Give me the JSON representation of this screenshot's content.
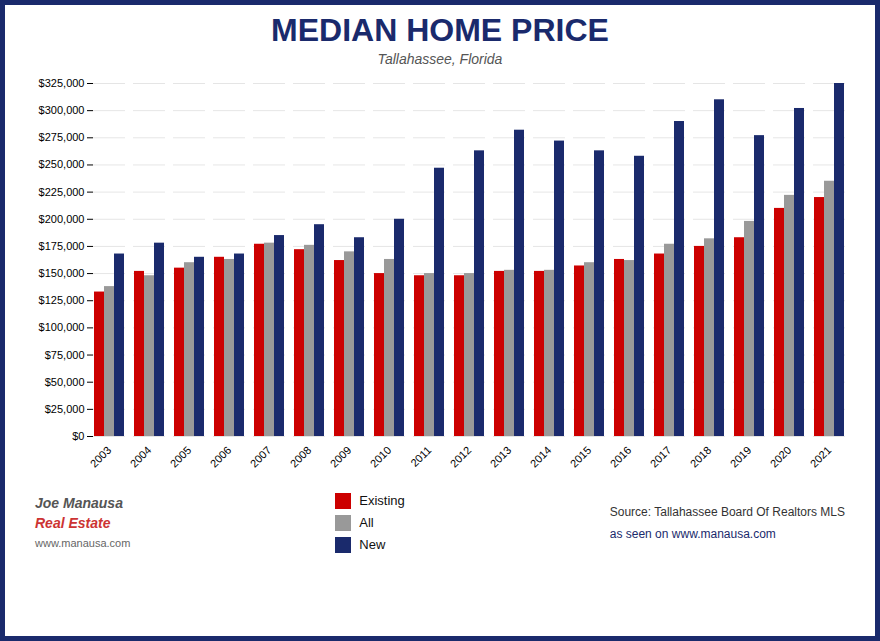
{
  "chart_data": {
    "type": "bar",
    "title": "MEDIAN HOME PRICE",
    "subtitle": "Tallahassee, Florida",
    "categories": [
      "2003",
      "2004",
      "2005",
      "2006",
      "2007",
      "2008",
      "2009",
      "2010",
      "2011",
      "2012",
      "2013",
      "2014",
      "2015",
      "2016",
      "2017",
      "2018",
      "2019",
      "2020",
      "2021"
    ],
    "series": [
      {
        "name": "Existing",
        "color": "#CC0000",
        "values": [
          133000,
          152000,
          155000,
          165000,
          177000,
          172000,
          162000,
          150000,
          148000,
          148000,
          152000,
          152000,
          157000,
          163000,
          168000,
          175000,
          183000,
          210000,
          220000
        ]
      },
      {
        "name": "All",
        "color": "#999999",
        "values": [
          138000,
          148000,
          160000,
          163000,
          178000,
          176000,
          170000,
          163000,
          150000,
          150000,
          153000,
          153000,
          160000,
          162000,
          177000,
          182000,
          198000,
          222000,
          235000
        ]
      },
      {
        "name": "New",
        "color": "#1a2a6c",
        "values": [
          168000,
          178000,
          165000,
          168000,
          185000,
          195000,
          183000,
          200000,
          247000,
          263000,
          282000,
          272000,
          263000,
          258000,
          290000,
          310000,
          277000,
          302000,
          325000
        ]
      }
    ],
    "ylim": [
      0,
      325000
    ],
    "yticks": [
      {
        "value": 0,
        "label": "$0"
      },
      {
        "value": 25000,
        "label": "$25,000"
      },
      {
        "value": 50000,
        "label": "$50,000"
      },
      {
        "value": 75000,
        "label": "$75,000"
      },
      {
        "value": 100000,
        "label": "$100,000"
      },
      {
        "value": 125000,
        "label": "$125,000"
      },
      {
        "value": 150000,
        "label": "$150,000"
      },
      {
        "value": 175000,
        "label": "$175,000"
      },
      {
        "value": 200000,
        "label": "$200,000"
      },
      {
        "value": 225000,
        "label": "$225,000"
      },
      {
        "value": 250000,
        "label": "$250,000"
      },
      {
        "value": 275000,
        "label": "$275,000"
      },
      {
        "value": 300000,
        "label": "$300,000"
      },
      {
        "value": 325000,
        "label": "$325,000"
      }
    ],
    "grid": true,
    "legend": "bottom",
    "annotations": [
      "Source: Tallahassee Board Of Realtors MLS",
      "as seen on www.manausa.com",
      "Joe Manausa",
      "Real Estate",
      "www.manausa.com"
    ]
  }
}
